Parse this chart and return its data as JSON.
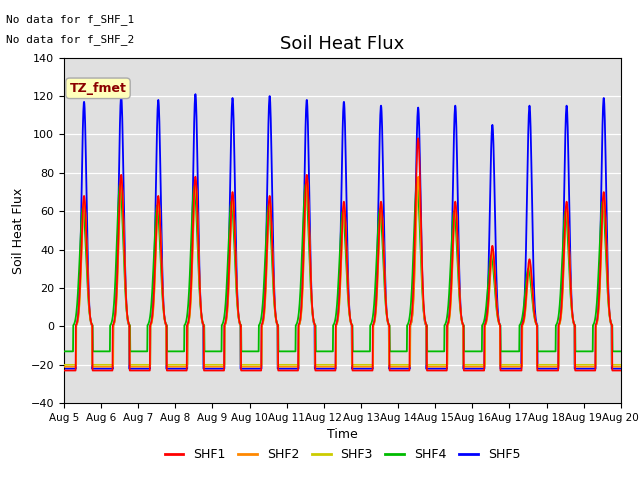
{
  "title": "Soil Heat Flux",
  "xlabel": "Time",
  "ylabel": "Soil Heat Flux",
  "ylim": [
    -40,
    140
  ],
  "xlim": [
    0,
    15
  ],
  "x_tick_labels": [
    "Aug 5",
    "Aug 6",
    "Aug 7",
    "Aug 8",
    "Aug 9",
    "Aug 10",
    "Aug 11",
    "Aug 12",
    "Aug 13",
    "Aug 14",
    "Aug 15",
    "Aug 16",
    "Aug 17",
    "Aug 18",
    "Aug 19",
    "Aug 20"
  ],
  "annotations": [
    "No data for f_SHF_1",
    "No data for f_SHF_2"
  ],
  "tz_label": "TZ_fmet",
  "colors": {
    "SHF1": "#ff0000",
    "SHF2": "#ff8800",
    "SHF3": "#cccc00",
    "SHF4": "#00bb00",
    "SHF5": "#0000ff"
  },
  "bg_color": "#e0e0e0",
  "grid_color": "#ffffff",
  "title_fontsize": 13,
  "label_fontsize": 9,
  "shf1_peaks": [
    68,
    79,
    68,
    78,
    70,
    68,
    79,
    65,
    65,
    98,
    65,
    42,
    35,
    65,
    70
  ],
  "shf2_peaks": [
    66,
    77,
    66,
    76,
    68,
    66,
    77,
    63,
    64,
    78,
    63,
    40,
    33,
    63,
    68
  ],
  "shf3_peaks": [
    65,
    76,
    65,
    75,
    67,
    65,
    76,
    62,
    63,
    77,
    62,
    39,
    32,
    62,
    67
  ],
  "shf4_peaks": [
    62,
    74,
    63,
    73,
    65,
    63,
    74,
    60,
    61,
    75,
    60,
    37,
    30,
    60,
    65
  ],
  "shf5_peaks": [
    117,
    120,
    118,
    121,
    119,
    120,
    118,
    117,
    115,
    114,
    115,
    105,
    115,
    115,
    119
  ],
  "shf1_neg": -23,
  "shf2_neg": -21,
  "shf3_neg": -20,
  "shf4_neg": -13,
  "shf5_neg": -22
}
